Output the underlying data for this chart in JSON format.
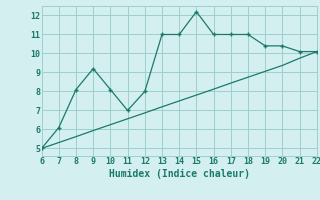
{
  "xlabel": "Humidex (Indice chaleur)",
  "x_data": [
    6,
    7,
    8,
    9,
    10,
    11,
    12,
    13,
    14,
    15,
    16,
    17,
    18,
    19,
    20,
    21,
    22
  ],
  "y_main": [
    5,
    6.1,
    8.1,
    9.2,
    8.1,
    7.0,
    8.0,
    11.0,
    11.0,
    12.2,
    11.0,
    11.0,
    11.0,
    10.4,
    10.4,
    10.1,
    10.1
  ],
  "y_diag": [
    5,
    5.31,
    5.62,
    5.94,
    6.25,
    6.56,
    6.87,
    7.19,
    7.5,
    7.81,
    8.12,
    8.44,
    8.75,
    9.06,
    9.37,
    9.75,
    10.1
  ],
  "line_color": "#1a7a6a",
  "bg_color": "#d4efef",
  "grid_color": "#9fcfcf",
  "xlim": [
    6,
    22
  ],
  "ylim": [
    4.6,
    12.5
  ],
  "xticks": [
    6,
    7,
    8,
    9,
    10,
    11,
    12,
    13,
    14,
    15,
    16,
    17,
    18,
    19,
    20,
    21,
    22
  ],
  "yticks": [
    5,
    6,
    7,
    8,
    9,
    10,
    11,
    12
  ],
  "xlabel_fontsize": 7,
  "tick_fontsize": 6
}
